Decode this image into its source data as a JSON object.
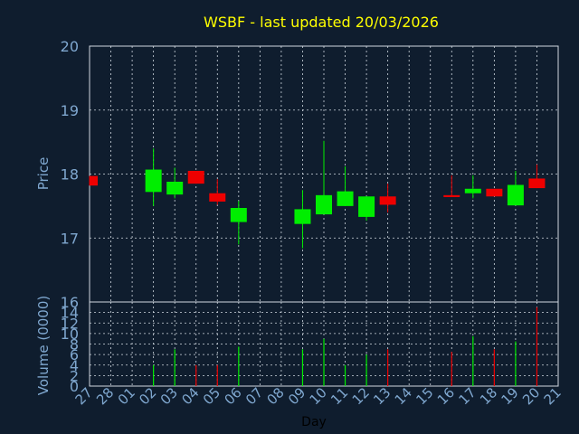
{
  "chart_data": [
    {
      "type": "candlestick",
      "title": "WSBF - last updated 20/03/2026",
      "xlabel": "Day",
      "ylabel": "Price",
      "ylim": [
        16,
        20
      ],
      "yticks": [
        16,
        17,
        18,
        19,
        20
      ],
      "grid": true,
      "categories": [
        "27",
        "28",
        "01",
        "02",
        "03",
        "04",
        "05",
        "06",
        "07",
        "08",
        "09",
        "10",
        "11",
        "12",
        "13",
        "14",
        "15",
        "16",
        "17",
        "18",
        "19",
        "20",
        "21"
      ],
      "candles": [
        {
          "day": "27",
          "open": 17.97,
          "close": 17.82,
          "high": 17.97,
          "low": 17.82
        },
        {
          "day": "02",
          "open": 17.72,
          "close": 18.07,
          "high": 18.4,
          "low": 17.5
        },
        {
          "day": "03",
          "open": 17.68,
          "close": 17.88,
          "high": 18.1,
          "low": 17.62
        },
        {
          "day": "04",
          "open": 18.05,
          "close": 17.85,
          "high": 18.05,
          "low": 17.85
        },
        {
          "day": "05",
          "open": 17.7,
          "close": 17.57,
          "high": 17.92,
          "low": 17.52
        },
        {
          "day": "06",
          "open": 17.25,
          "close": 17.47,
          "high": 17.58,
          "low": 16.9
        },
        {
          "day": "09",
          "open": 17.22,
          "close": 17.45,
          "high": 17.75,
          "low": 16.84
        },
        {
          "day": "10",
          "open": 17.37,
          "close": 17.67,
          "high": 18.52,
          "low": 17.37
        },
        {
          "day": "11",
          "open": 17.5,
          "close": 17.73,
          "high": 18.12,
          "low": 17.5
        },
        {
          "day": "12",
          "open": 17.33,
          "close": 17.65,
          "high": 17.65,
          "low": 17.27
        },
        {
          "day": "13",
          "open": 17.65,
          "close": 17.52,
          "high": 17.85,
          "low": 17.4
        },
        {
          "day": "16",
          "open": 17.67,
          "close": 17.64,
          "high": 17.98,
          "low": 17.64
        },
        {
          "day": "17",
          "open": 17.7,
          "close": 17.77,
          "high": 17.98,
          "low": 17.62
        },
        {
          "day": "18",
          "open": 17.77,
          "close": 17.65,
          "high": 17.77,
          "low": 17.65
        },
        {
          "day": "19",
          "open": 17.51,
          "close": 17.83,
          "high": 18.05,
          "low": 17.51
        },
        {
          "day": "20",
          "open": 17.93,
          "close": 17.78,
          "high": 18.15,
          "low": 17.78
        }
      ],
      "colors": {
        "up": "#00ee00",
        "down": "#ee0000",
        "title": "#ffff00",
        "axis": "#7fa7cf",
        "grid": "#d0d8e0",
        "background": "#0f1d2e"
      }
    },
    {
      "type": "bar",
      "xlabel": "Day",
      "ylabel": "Volume (0000)",
      "ylim": [
        0,
        16
      ],
      "yticks": [
        0,
        2,
        4,
        6,
        8,
        10,
        12,
        14,
        16
      ],
      "grid": true,
      "categories": [
        "27",
        "28",
        "01",
        "02",
        "03",
        "04",
        "05",
        "06",
        "07",
        "08",
        "09",
        "10",
        "11",
        "12",
        "13",
        "14",
        "15",
        "16",
        "17",
        "18",
        "19",
        "20",
        "21"
      ],
      "bars": [
        {
          "day": "02",
          "value": 4,
          "dir": "up"
        },
        {
          "day": "03",
          "value": 7,
          "dir": "up"
        },
        {
          "day": "04",
          "value": 4,
          "dir": "down"
        },
        {
          "day": "05",
          "value": 4,
          "dir": "down"
        },
        {
          "day": "06",
          "value": 7.5,
          "dir": "up"
        },
        {
          "day": "09",
          "value": 7,
          "dir": "up"
        },
        {
          "day": "10",
          "value": 9,
          "dir": "up"
        },
        {
          "day": "11",
          "value": 4,
          "dir": "up"
        },
        {
          "day": "12",
          "value": 6,
          "dir": "up"
        },
        {
          "day": "13",
          "value": 7,
          "dir": "down"
        },
        {
          "day": "16",
          "value": 6.5,
          "dir": "down"
        },
        {
          "day": "17",
          "value": 9.5,
          "dir": "up"
        },
        {
          "day": "18",
          "value": 7,
          "dir": "down"
        },
        {
          "day": "19",
          "value": 8.5,
          "dir": "up"
        },
        {
          "day": "20",
          "value": 15,
          "dir": "down"
        }
      ]
    }
  ]
}
